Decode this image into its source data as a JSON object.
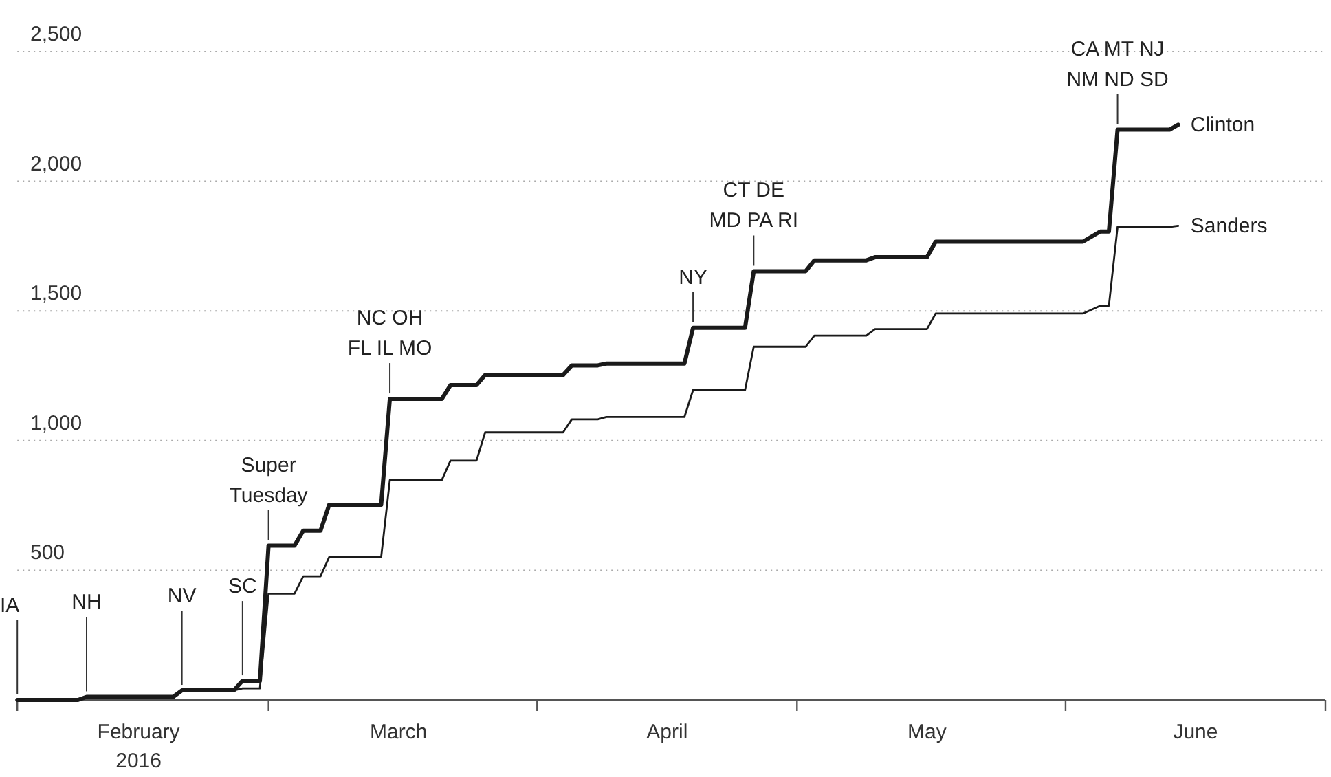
{
  "chart_data": {
    "type": "line",
    "xlim": [
      "2016-02-01",
      "2016-07-01"
    ],
    "ylim": [
      0,
      2500
    ],
    "xticks": [
      {
        "value": "2016-02-01",
        "label": null
      },
      {
        "value": "2016-02-15",
        "label": "February\n2016"
      },
      {
        "value": "2016-03-01",
        "label": null
      },
      {
        "value": "2016-03-16",
        "label": "March"
      },
      {
        "value": "2016-04-01",
        "label": null
      },
      {
        "value": "2016-04-16",
        "label": "April"
      },
      {
        "value": "2016-05-01",
        "label": null
      },
      {
        "value": "2016-05-16",
        "label": "May"
      },
      {
        "value": "2016-06-01",
        "label": null
      },
      {
        "value": "2016-06-16",
        "label": "June"
      },
      {
        "value": "2016-07-01",
        "label": null
      }
    ],
    "yticks": [
      500,
      {
        "value": 1000,
        "label": "1,000"
      },
      {
        "value": 1500,
        "label": "1,500"
      },
      {
        "value": 2000,
        "label": "2,000"
      },
      {
        "value": 2500,
        "label": "2,500"
      }
    ],
    "grid": "y",
    "legend": false,
    "marker": "none",
    "line_style": "solid",
    "x": [
      "2016-02-01",
      "2016-02-08",
      "2016-02-09",
      "2016-02-19",
      "2016-02-20",
      "2016-02-26",
      "2016-02-27",
      "2016-02-29",
      "2016-03-01",
      "2016-03-04",
      "2016-03-05",
      "2016-03-07",
      "2016-03-08",
      "2016-03-14",
      "2016-03-15",
      "2016-03-21",
      "2016-03-22",
      "2016-03-25",
      "2016-03-26",
      "2016-04-04",
      "2016-04-05",
      "2016-04-08",
      "2016-04-09",
      "2016-04-18",
      "2016-04-19",
      "2016-04-25",
      "2016-04-26",
      "2016-05-02",
      "2016-05-03",
      "2016-05-09",
      "2016-05-10",
      "2016-05-16",
      "2016-05-17",
      "2016-06-03",
      "2016-06-05",
      "2016-06-06",
      "2016-06-07",
      "2016-06-13",
      "2016-06-14"
    ],
    "series": [
      {
        "name": "Clinton",
        "color": "#1a1a1a",
        "values": [
          0,
          0,
          12,
          12,
          37,
          37,
          74,
          74,
          595,
          595,
          653,
          653,
          753,
          753,
          1161,
          1161,
          1214,
          1214,
          1253,
          1253,
          1290,
          1290,
          1297,
          1297,
          1435,
          1435,
          1653,
          1653,
          1695,
          1695,
          1707,
          1707,
          1767,
          1767,
          1806,
          1806,
          2199,
          2199,
          2218
        ]
      },
      {
        "name": "Sanders",
        "color": "#1a1a1a",
        "values": [
          0,
          0,
          12,
          12,
          37,
          37,
          45,
          45,
          410,
          410,
          477,
          477,
          551,
          551,
          848,
          848,
          923,
          923,
          1032,
          1032,
          1082,
          1082,
          1091,
          1091,
          1195,
          1195,
          1362,
          1362,
          1405,
          1405,
          1430,
          1430,
          1490,
          1490,
          1520,
          1520,
          1824,
          1824,
          1828
        ]
      }
    ],
    "annotations": [
      {
        "text": "IA",
        "x": "2016-02-01",
        "y": 0
      },
      {
        "text": "NH",
        "x": "2016-02-09",
        "y": 12
      },
      {
        "text": "NV",
        "x": "2016-02-20",
        "y": 37
      },
      {
        "text": "SC",
        "x": "2016-02-27",
        "y": 74
      },
      {
        "text": "Super\nTuesday",
        "x": "2016-03-01",
        "y": 595
      },
      {
        "text": "NC OH\nFL IL MO",
        "x": "2016-03-15",
        "y": 1161
      },
      {
        "text": "NY",
        "x": "2016-04-19",
        "y": 1435
      },
      {
        "text": "CT DE\nMD PA RI",
        "x": "2016-04-26",
        "y": 1653
      },
      {
        "text": "CA MT NJ\nNM ND SD",
        "x": "2016-06-07",
        "y": 2199
      }
    ]
  }
}
